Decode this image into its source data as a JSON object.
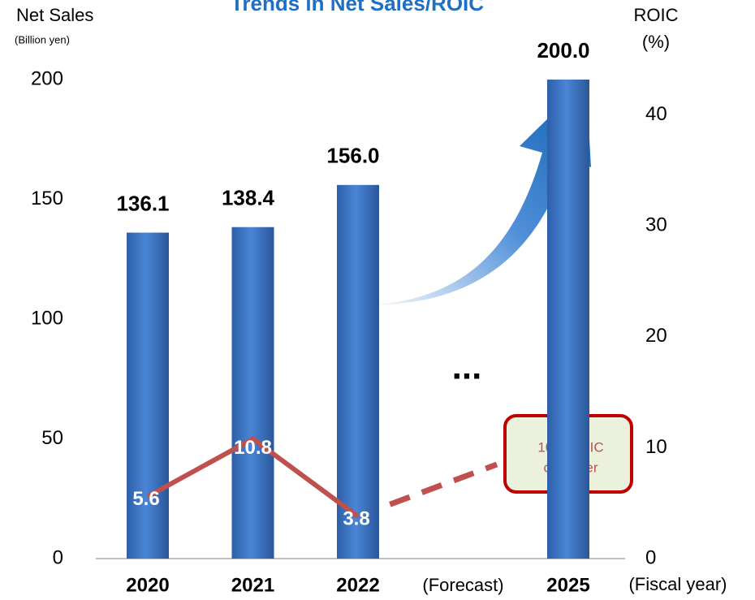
{
  "chart_data": {
    "type": "bar",
    "title": "Trends in Net Sales/ROIC",
    "y_label": "Net Sales",
    "y_sublabel": "(Billion yen)",
    "y2_label": "ROIC",
    "y2_sublabel": "(%)",
    "x_label": "(Fiscal year)",
    "categories": [
      "2020",
      "2021",
      "2022",
      "(Forecast)",
      "2025"
    ],
    "series": [
      {
        "name": "Net Sales",
        "color": "#3f75c8",
        "values": [
          136.1,
          138.4,
          156.0,
          null,
          200.0
        ],
        "value_labels": [
          "136.1",
          "138.4",
          "156.0",
          null,
          "200.0"
        ]
      },
      {
        "name": "ROIC",
        "color": "#c0504d",
        "axis": "y2",
        "values": [
          5.6,
          10.8,
          3.8,
          null,
          null
        ]
      }
    ],
    "ylim": [
      0,
      200
    ],
    "yticks": [
      0,
      50,
      100,
      150,
      200
    ],
    "y2lim": [
      0,
      43.2
    ],
    "y2ticks": [
      0,
      10,
      20,
      30,
      40
    ],
    "annotations": [
      "10% ROIC",
      "or higher",
      "..."
    ]
  }
}
